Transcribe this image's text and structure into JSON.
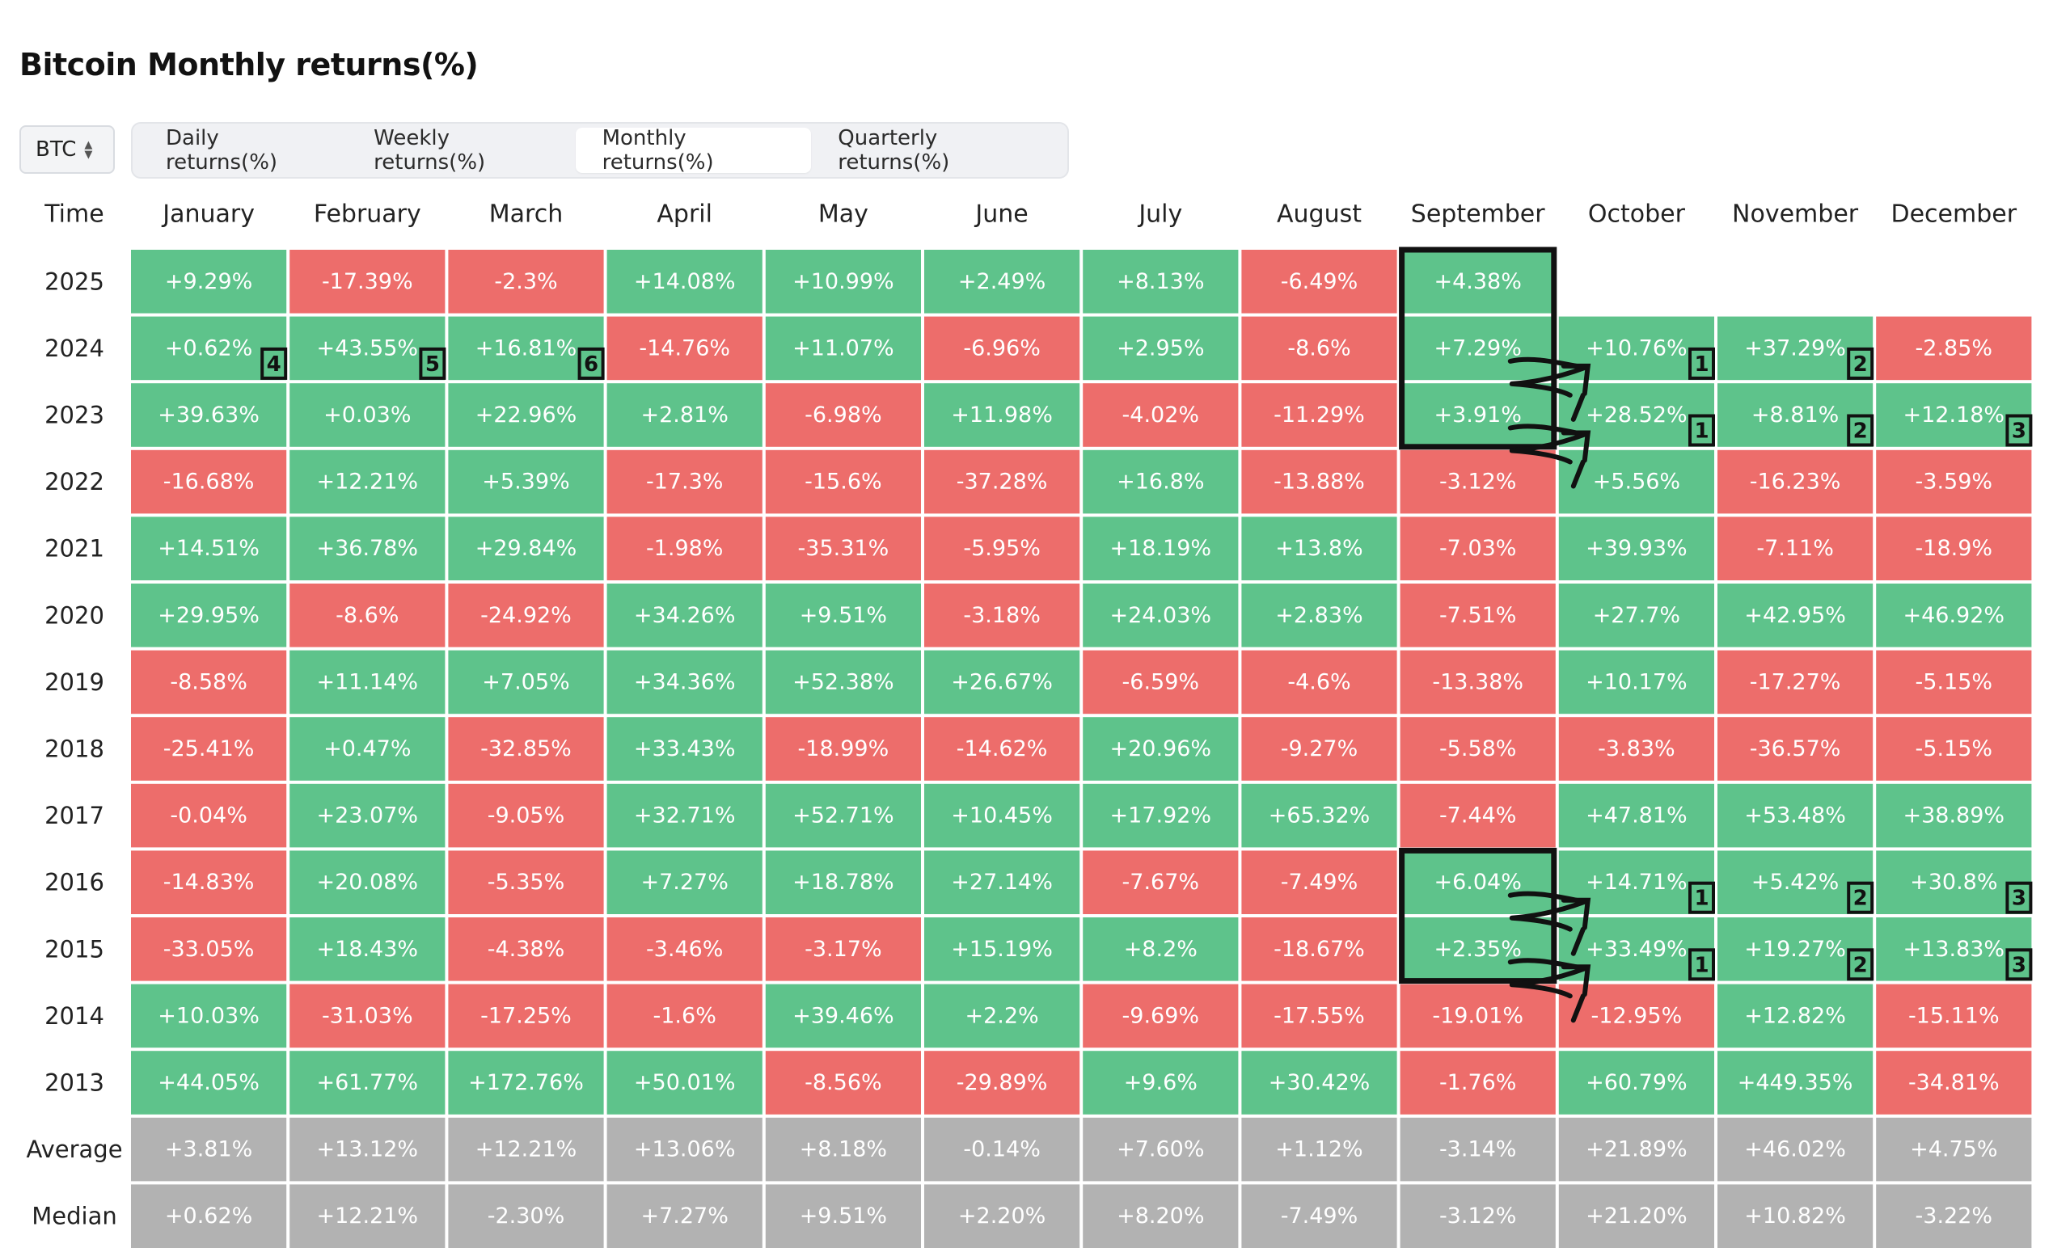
{
  "title": "Bitcoin Monthly returns(%)",
  "coin_select": {
    "value": "BTC",
    "icon": "chevron-up-down-icon"
  },
  "tabs": [
    {
      "label": "Daily returns(%)",
      "active": false
    },
    {
      "label": "Weekly returns(%)",
      "active": false
    },
    {
      "label": "Monthly returns(%)",
      "active": true
    },
    {
      "label": "Quarterly returns(%)",
      "active": false
    }
  ],
  "colors": {
    "positive": "#5ec38b",
    "negative": "#ed6d6b",
    "summary": "#b2b2b2",
    "annotation": "#111111"
  },
  "chart_data": {
    "type": "heatmap",
    "title": "Bitcoin Monthly returns(%)",
    "corner_label": "Time",
    "months": [
      "January",
      "February",
      "March",
      "April",
      "May",
      "June",
      "July",
      "August",
      "September",
      "October",
      "November",
      "December"
    ],
    "years": [
      "2025",
      "2024",
      "2023",
      "2022",
      "2021",
      "2020",
      "2019",
      "2018",
      "2017",
      "2016",
      "2015",
      "2014",
      "2013"
    ],
    "values": [
      [
        9.29,
        -17.39,
        -2.3,
        14.08,
        10.99,
        2.49,
        8.13,
        -6.49,
        4.38,
        null,
        null,
        null
      ],
      [
        0.62,
        43.55,
        16.81,
        -14.76,
        11.07,
        -6.96,
        2.95,
        -8.6,
        7.29,
        10.76,
        37.29,
        -2.85
      ],
      [
        39.63,
        0.03,
        22.96,
        2.81,
        -6.98,
        11.98,
        -4.02,
        -11.29,
        3.91,
        28.52,
        8.81,
        12.18
      ],
      [
        -16.68,
        12.21,
        5.39,
        -17.3,
        -15.6,
        -37.28,
        16.8,
        -13.88,
        -3.12,
        5.56,
        -16.23,
        -3.59
      ],
      [
        14.51,
        36.78,
        29.84,
        -1.98,
        -35.31,
        -5.95,
        18.19,
        13.8,
        -7.03,
        39.93,
        -7.11,
        -18.9
      ],
      [
        29.95,
        -8.6,
        -24.92,
        34.26,
        9.51,
        -3.18,
        24.03,
        2.83,
        -7.51,
        27.7,
        42.95,
        46.92
      ],
      [
        -8.58,
        11.14,
        7.05,
        34.36,
        52.38,
        26.67,
        -6.59,
        -4.6,
        -13.38,
        10.17,
        -17.27,
        -5.15
      ],
      [
        -25.41,
        0.47,
        -32.85,
        33.43,
        -18.99,
        -14.62,
        20.96,
        -9.27,
        -5.58,
        -3.83,
        -36.57,
        -5.15
      ],
      [
        -0.04,
        23.07,
        -9.05,
        32.71,
        52.71,
        10.45,
        17.92,
        65.32,
        -7.44,
        47.81,
        53.48,
        38.89
      ],
      [
        -14.83,
        20.08,
        -5.35,
        7.27,
        18.78,
        27.14,
        -7.67,
        -7.49,
        6.04,
        14.71,
        5.42,
        30.8
      ],
      [
        -33.05,
        18.43,
        -4.38,
        -3.46,
        -3.17,
        15.19,
        8.2,
        -18.67,
        2.35,
        33.49,
        19.27,
        13.83
      ],
      [
        10.03,
        -31.03,
        -17.25,
        -1.6,
        39.46,
        2.2,
        -9.69,
        -17.55,
        -19.01,
        -12.95,
        12.82,
        -15.11
      ],
      [
        44.05,
        61.77,
        172.76,
        50.01,
        -8.56,
        -29.89,
        9.6,
        30.42,
        -1.76,
        60.79,
        449.35,
        -34.81
      ]
    ],
    "labels": [
      [
        "+9.29%",
        "-17.39%",
        "-2.3%",
        "+14.08%",
        "+10.99%",
        "+2.49%",
        "+8.13%",
        "-6.49%",
        "+4.38%",
        null,
        null,
        null
      ],
      [
        "+0.62%",
        "+43.55%",
        "+16.81%",
        "-14.76%",
        "+11.07%",
        "-6.96%",
        "+2.95%",
        "-8.6%",
        "+7.29%",
        "+10.76%",
        "+37.29%",
        "-2.85%"
      ],
      [
        "+39.63%",
        "+0.03%",
        "+22.96%",
        "+2.81%",
        "-6.98%",
        "+11.98%",
        "-4.02%",
        "-11.29%",
        "+3.91%",
        "+28.52%",
        "+8.81%",
        "+12.18%"
      ],
      [
        "-16.68%",
        "+12.21%",
        "+5.39%",
        "-17.3%",
        "-15.6%",
        "-37.28%",
        "+16.8%",
        "-13.88%",
        "-3.12%",
        "+5.56%",
        "-16.23%",
        "-3.59%"
      ],
      [
        "+14.51%",
        "+36.78%",
        "+29.84%",
        "-1.98%",
        "-35.31%",
        "-5.95%",
        "+18.19%",
        "+13.8%",
        "-7.03%",
        "+39.93%",
        "-7.11%",
        "-18.9%"
      ],
      [
        "+29.95%",
        "-8.6%",
        "-24.92%",
        "+34.26%",
        "+9.51%",
        "-3.18%",
        "+24.03%",
        "+2.83%",
        "-7.51%",
        "+27.7%",
        "+42.95%",
        "+46.92%"
      ],
      [
        "-8.58%",
        "+11.14%",
        "+7.05%",
        "+34.36%",
        "+52.38%",
        "+26.67%",
        "-6.59%",
        "-4.6%",
        "-13.38%",
        "+10.17%",
        "-17.27%",
        "-5.15%"
      ],
      [
        "-25.41%",
        "+0.47%",
        "-32.85%",
        "+33.43%",
        "-18.99%",
        "-14.62%",
        "+20.96%",
        "-9.27%",
        "-5.58%",
        "-3.83%",
        "-36.57%",
        "-5.15%"
      ],
      [
        "-0.04%",
        "+23.07%",
        "-9.05%",
        "+32.71%",
        "+52.71%",
        "+10.45%",
        "+17.92%",
        "+65.32%",
        "-7.44%",
        "+47.81%",
        "+53.48%",
        "+38.89%"
      ],
      [
        "-14.83%",
        "+20.08%",
        "-5.35%",
        "+7.27%",
        "+18.78%",
        "+27.14%",
        "-7.67%",
        "-7.49%",
        "+6.04%",
        "+14.71%",
        "+5.42%",
        "+30.8%"
      ],
      [
        "-33.05%",
        "+18.43%",
        "-4.38%",
        "-3.46%",
        "-3.17%",
        "+15.19%",
        "+8.2%",
        "-18.67%",
        "+2.35%",
        "+33.49%",
        "+19.27%",
        "+13.83%"
      ],
      [
        "+10.03%",
        "-31.03%",
        "-17.25%",
        "-1.6%",
        "+39.46%",
        "+2.2%",
        "-9.69%",
        "-17.55%",
        "-19.01%",
        "-12.95%",
        "+12.82%",
        "-15.11%"
      ],
      [
        "+44.05%",
        "+61.77%",
        "+172.76%",
        "+50.01%",
        "-8.56%",
        "-29.89%",
        "+9.6%",
        "+30.42%",
        "-1.76%",
        "+60.79%",
        "+449.35%",
        "-34.81%"
      ]
    ],
    "summary_rows": [
      {
        "label": "Average",
        "values": [
          "+3.81%",
          "+13.12%",
          "+12.21%",
          "+13.06%",
          "+8.18%",
          "-0.14%",
          "+7.60%",
          "+1.12%",
          "-3.14%",
          "+21.89%",
          "+46.02%",
          "+4.75%"
        ]
      },
      {
        "label": "Median",
        "values": [
          "+0.62%",
          "+12.21%",
          "-2.30%",
          "+7.27%",
          "+9.51%",
          "+2.20%",
          "+8.20%",
          "-7.49%",
          "-3.12%",
          "+21.20%",
          "+10.82%",
          "-3.22%"
        ]
      }
    ],
    "annotations": {
      "highlight_boxes": [
        {
          "month": "September",
          "years": [
            "2025",
            "2024",
            "2023"
          ]
        },
        {
          "month": "September",
          "years": [
            "2016",
            "2015"
          ]
        }
      ],
      "arrows": [
        {
          "from": [
            "2024",
            "September"
          ],
          "to": [
            "2023",
            "October"
          ]
        },
        {
          "from": [
            "2023",
            "September"
          ],
          "to": [
            "2022",
            "October"
          ]
        },
        {
          "from": [
            "2016",
            "September"
          ],
          "to": [
            "2015",
            "October"
          ]
        },
        {
          "from": [
            "2015",
            "September"
          ],
          "to": [
            "2014",
            "October"
          ]
        }
      ],
      "rank_badges": [
        {
          "year": "2024",
          "month": "January",
          "rank": "4"
        },
        {
          "year": "2024",
          "month": "February",
          "rank": "5"
        },
        {
          "year": "2024",
          "month": "March",
          "rank": "6"
        },
        {
          "year": "2024",
          "month": "October",
          "rank": "1"
        },
        {
          "year": "2024",
          "month": "November",
          "rank": "2"
        },
        {
          "year": "2023",
          "month": "October",
          "rank": "1"
        },
        {
          "year": "2023",
          "month": "November",
          "rank": "2"
        },
        {
          "year": "2023",
          "month": "December",
          "rank": "3"
        },
        {
          "year": "2016",
          "month": "October",
          "rank": "1"
        },
        {
          "year": "2016",
          "month": "November",
          "rank": "2"
        },
        {
          "year": "2016",
          "month": "December",
          "rank": "3"
        },
        {
          "year": "2015",
          "month": "October",
          "rank": "1"
        },
        {
          "year": "2015",
          "month": "November",
          "rank": "2"
        },
        {
          "year": "2015",
          "month": "December",
          "rank": "3"
        }
      ]
    }
  }
}
